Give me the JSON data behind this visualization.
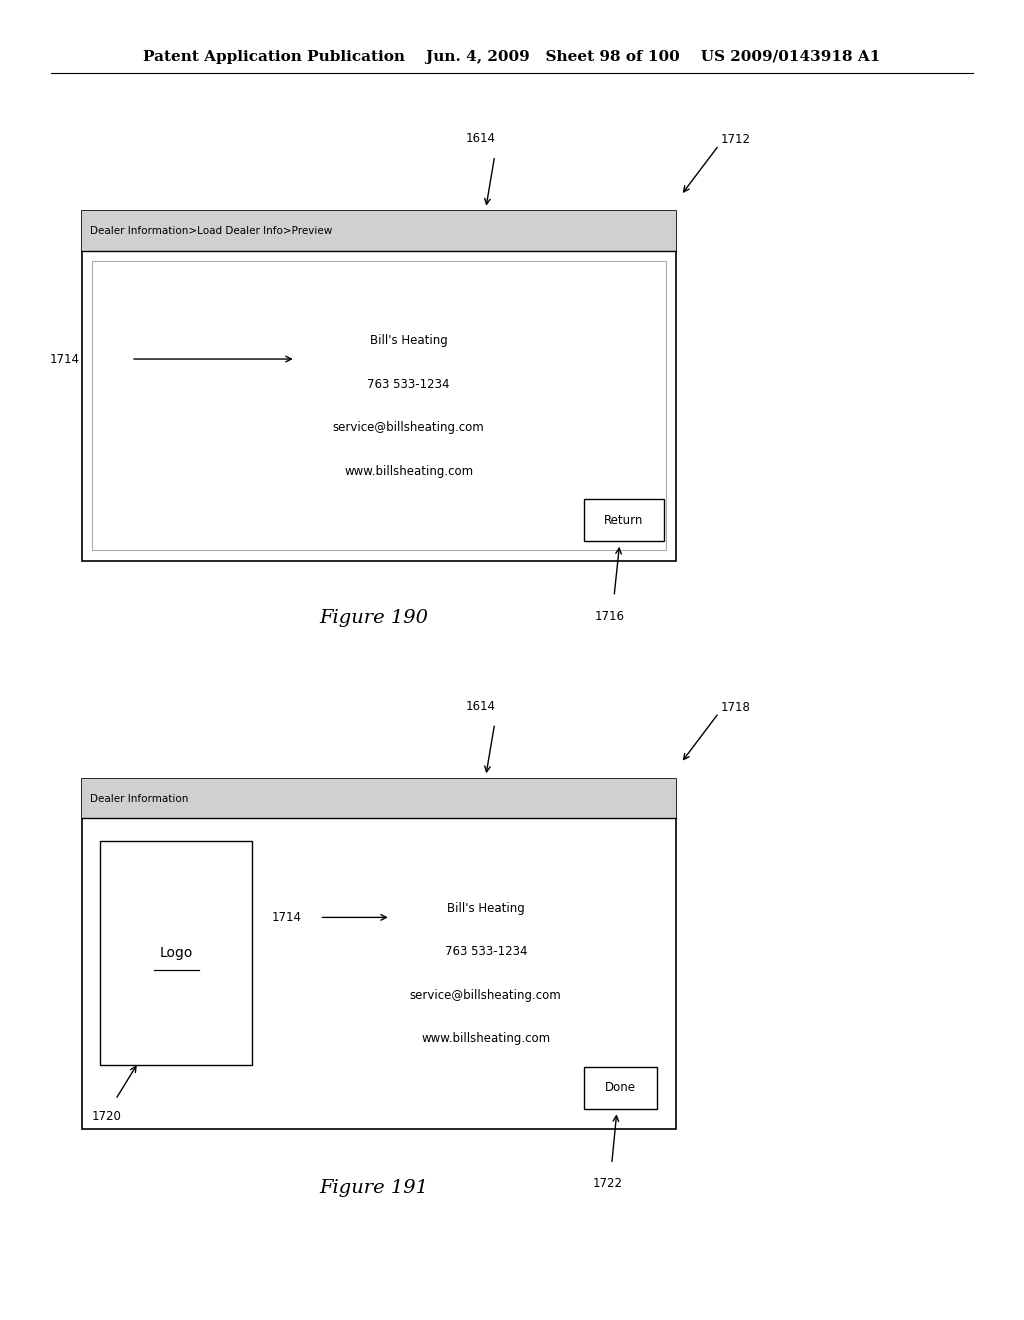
{
  "bg_color": "#ffffff",
  "header_text": "Patent Application Publication    Jun. 4, 2009   Sheet 98 of 100    US 2009/0143918 A1",
  "header_fontsize": 11,
  "fig190": {
    "title": "Figure 190",
    "header_text": "Dealer Information>Load Dealer Info>Preview",
    "inner_lines": [
      "Bill's Heating",
      "763 533-1234",
      "service@billsheating.com",
      "www.billsheating.com"
    ],
    "button_text": "Return",
    "label_1614": "1614",
    "label_1712": "1712",
    "label_1714": "1714",
    "label_1716": "1716"
  },
  "fig191": {
    "title": "Figure 191",
    "header_text": "Dealer Information",
    "inner_lines": [
      "Bill's Heating",
      "763 533-1234",
      "service@billsheating.com",
      "www.billsheating.com"
    ],
    "button_text": "Done",
    "logo_text": "Logo",
    "label_1614": "1614",
    "label_1718": "1718",
    "label_1714": "1714",
    "label_1720": "1720",
    "label_1722": "1722"
  }
}
